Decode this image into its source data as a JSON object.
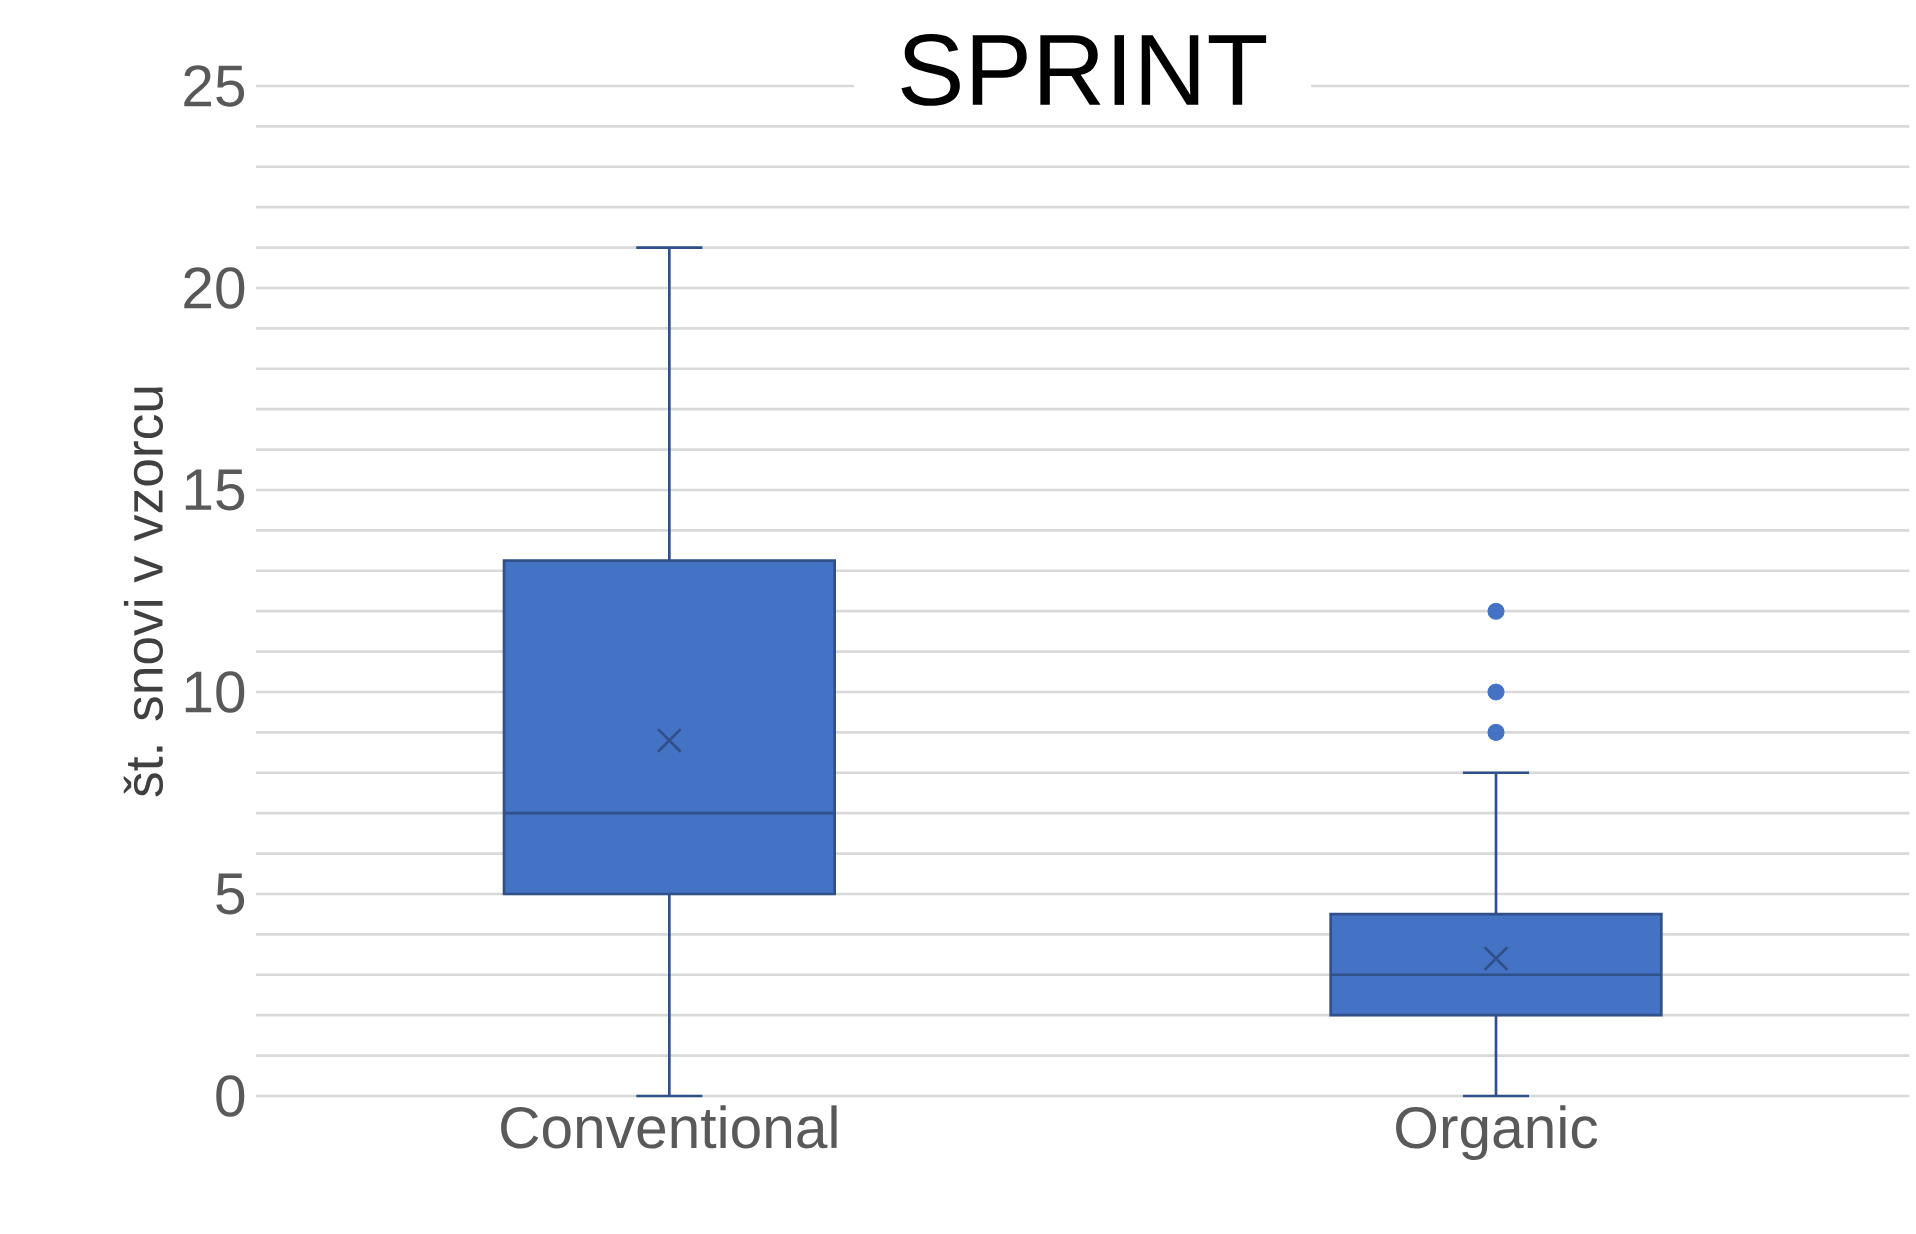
{
  "chart_data": {
    "type": "box",
    "title": "SPRINT",
    "ylabel": "št. snovi v vzorcu",
    "categories": [
      "Conventional",
      "Organic"
    ],
    "color": "#4472c4",
    "boxes": [
      {
        "low": 0,
        "q1": 5,
        "median": 7,
        "q3": 13.25,
        "high": 21,
        "mean": 8.8
      },
      {
        "low": 0,
        "q1": 2,
        "median": 3,
        "q3": 4.5,
        "high": 8,
        "mean": 3.4,
        "outliers": [
          12,
          10,
          9
        ]
      }
    ],
    "ylim": [
      0,
      25
    ],
    "yticks": [
      0,
      5,
      10,
      15,
      20,
      25
    ],
    "grid": "y"
  }
}
